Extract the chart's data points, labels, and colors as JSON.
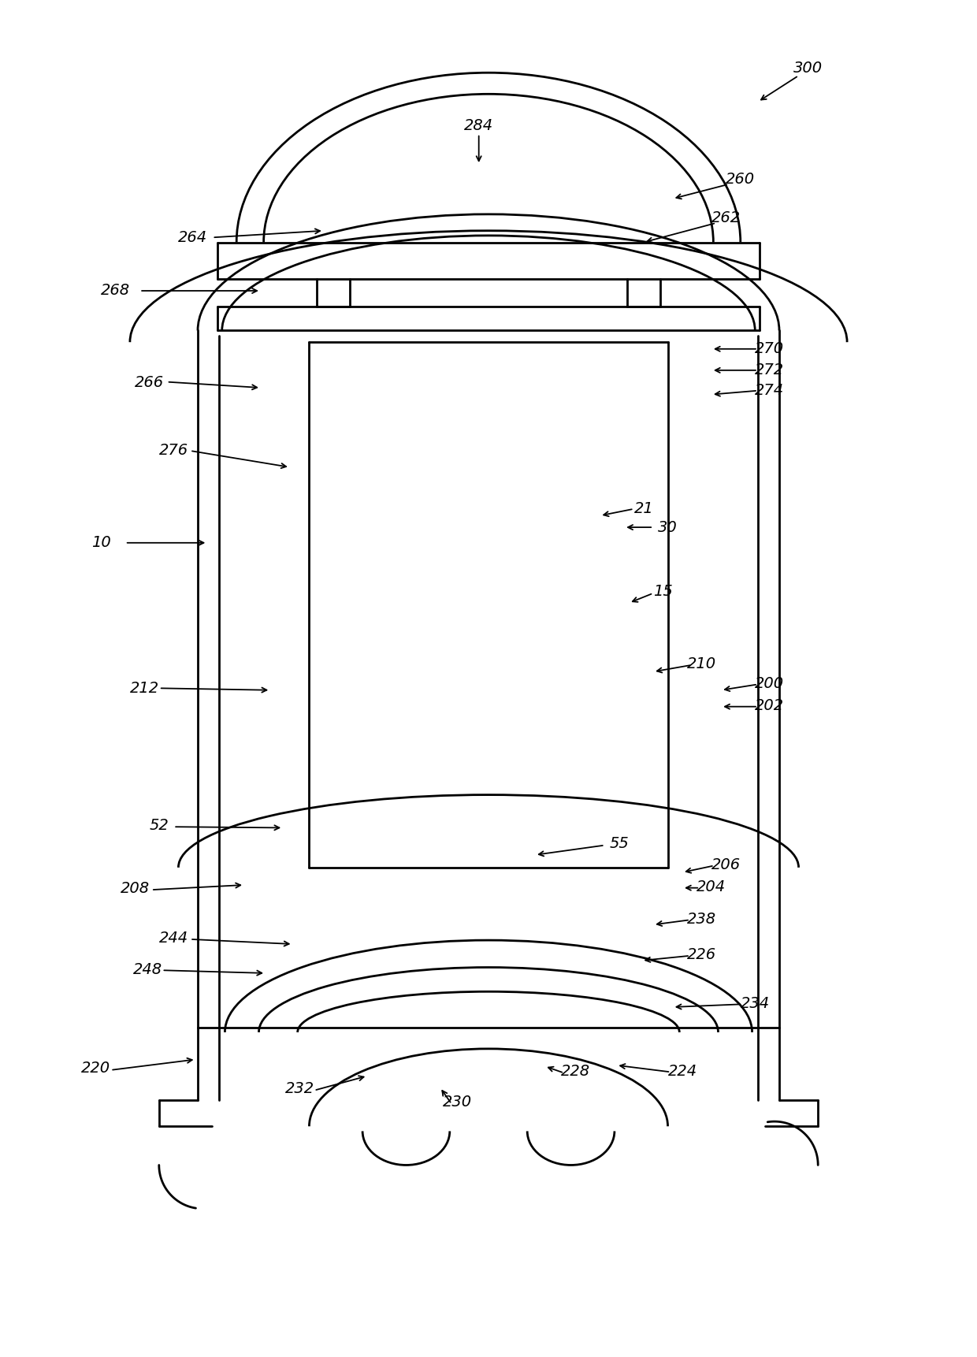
{
  "figure_size": [
    12.4,
    17.22
  ],
  "dpi": 100,
  "bg_color": "#ffffff",
  "line_color": "#000000",
  "lw": 2.0
}
